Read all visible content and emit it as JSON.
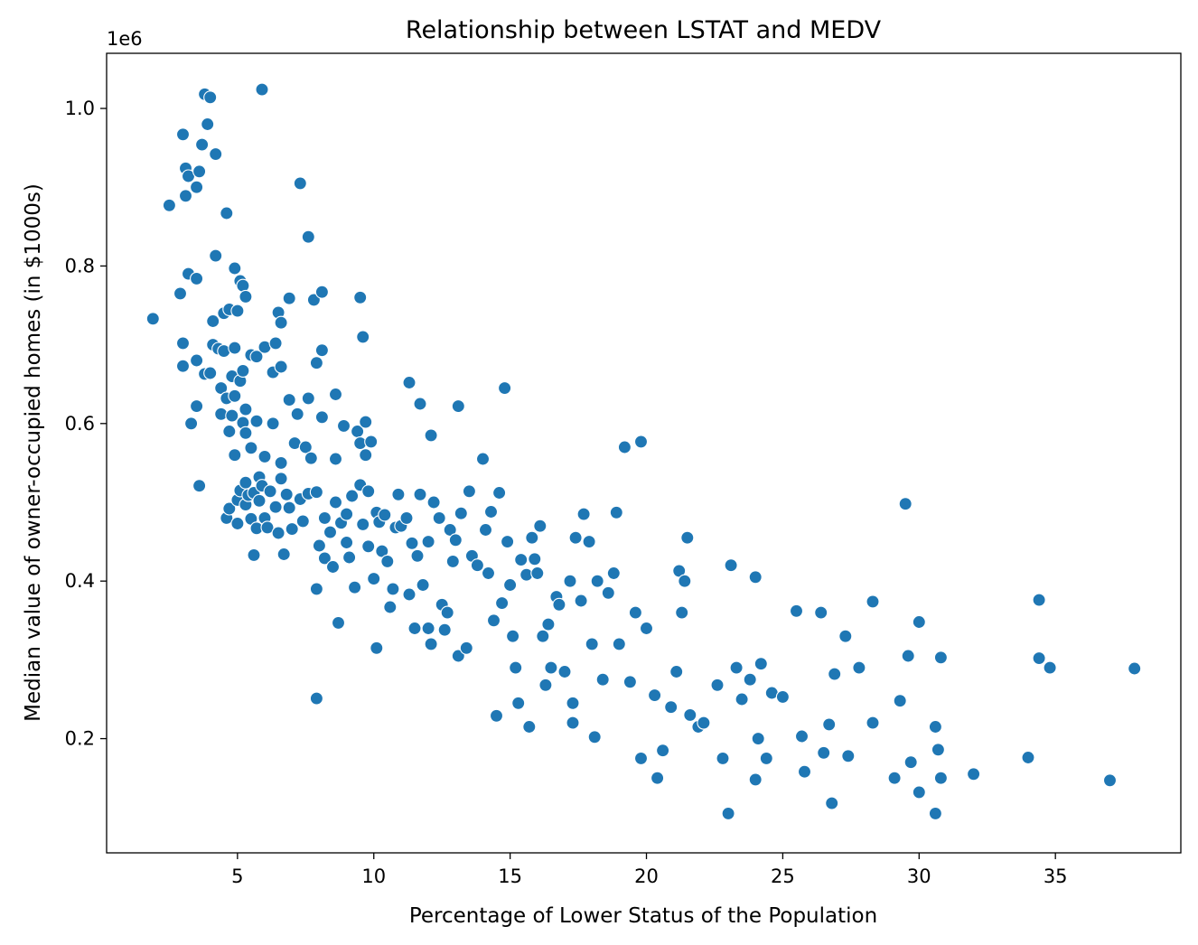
{
  "chart_data": {
    "type": "scatter",
    "title": "Relationship between LSTAT and MEDV",
    "xlabel": "Percentage of Lower Status of the Population",
    "ylabel": "Median value of owner-occupied homes (in $1000s)",
    "y_offset_label": "1e6",
    "xlim": [
      0.2,
      39.6
    ],
    "ylim": [
      0.055,
      1.07
    ],
    "x_ticks": [
      5,
      10,
      15,
      20,
      25,
      30,
      35
    ],
    "x_tick_labels": [
      "5",
      "10",
      "15",
      "20",
      "25",
      "30",
      "35"
    ],
    "y_ticks": [
      0.2,
      0.4,
      0.6,
      0.8,
      1.0
    ],
    "y_tick_labels": [
      "0.2",
      "0.4",
      "0.6",
      "0.8",
      "1.0"
    ],
    "grid": false,
    "legend": "none",
    "color": "#1f77b4",
    "points": [
      [
        1.9,
        0.733
      ],
      [
        2.5,
        0.877
      ],
      [
        2.9,
        0.765
      ],
      [
        3.0,
        0.702
      ],
      [
        3.0,
        0.673
      ],
      [
        3.0,
        0.967
      ],
      [
        3.1,
        0.889
      ],
      [
        3.1,
        0.924
      ],
      [
        3.2,
        0.914
      ],
      [
        3.2,
        0.79
      ],
      [
        3.3,
        0.6
      ],
      [
        3.5,
        0.9
      ],
      [
        3.5,
        0.784
      ],
      [
        3.5,
        0.68
      ],
      [
        3.5,
        0.622
      ],
      [
        3.6,
        0.92
      ],
      [
        3.6,
        0.521
      ],
      [
        3.7,
        0.954
      ],
      [
        3.8,
        1.018
      ],
      [
        3.8,
        0.663
      ],
      [
        3.9,
        0.98
      ],
      [
        4.0,
        1.014
      ],
      [
        4.0,
        0.664
      ],
      [
        4.1,
        0.73
      ],
      [
        4.1,
        0.7
      ],
      [
        4.2,
        0.942
      ],
      [
        4.2,
        0.813
      ],
      [
        4.3,
        0.695
      ],
      [
        4.4,
        0.645
      ],
      [
        4.4,
        0.612
      ],
      [
        4.5,
        0.692
      ],
      [
        4.5,
        0.74
      ],
      [
        4.6,
        0.867
      ],
      [
        4.6,
        0.632
      ],
      [
        4.6,
        0.48
      ],
      [
        4.7,
        0.745
      ],
      [
        4.7,
        0.59
      ],
      [
        4.7,
        0.492
      ],
      [
        4.8,
        0.61
      ],
      [
        4.8,
        0.66
      ],
      [
        4.9,
        0.797
      ],
      [
        4.9,
        0.696
      ],
      [
        4.9,
        0.635
      ],
      [
        4.9,
        0.56
      ],
      [
        5.0,
        0.743
      ],
      [
        5.0,
        0.503
      ],
      [
        5.0,
        0.473
      ],
      [
        5.1,
        0.781
      ],
      [
        5.1,
        0.654
      ],
      [
        5.1,
        0.515
      ],
      [
        5.2,
        0.775
      ],
      [
        5.2,
        0.667
      ],
      [
        5.2,
        0.601
      ],
      [
        5.3,
        0.761
      ],
      [
        5.3,
        0.618
      ],
      [
        5.3,
        0.588
      ],
      [
        5.3,
        0.525
      ],
      [
        5.3,
        0.497
      ],
      [
        5.4,
        0.509
      ],
      [
        5.5,
        0.687
      ],
      [
        5.5,
        0.569
      ],
      [
        5.5,
        0.479
      ],
      [
        5.6,
        0.433
      ],
      [
        5.6,
        0.512
      ],
      [
        5.7,
        0.685
      ],
      [
        5.7,
        0.603
      ],
      [
        5.7,
        0.467
      ],
      [
        5.8,
        0.532
      ],
      [
        5.8,
        0.502
      ],
      [
        5.9,
        1.024
      ],
      [
        5.9,
        0.521
      ],
      [
        6.0,
        0.697
      ],
      [
        6.0,
        0.48
      ],
      [
        6.0,
        0.558
      ],
      [
        6.1,
        0.468
      ],
      [
        6.2,
        0.514
      ],
      [
        6.3,
        0.665
      ],
      [
        6.3,
        0.6
      ],
      [
        6.4,
        0.702
      ],
      [
        6.4,
        0.494
      ],
      [
        6.5,
        0.741
      ],
      [
        6.5,
        0.461
      ],
      [
        6.6,
        0.728
      ],
      [
        6.6,
        0.672
      ],
      [
        6.6,
        0.53
      ],
      [
        6.6,
        0.55
      ],
      [
        6.7,
        0.434
      ],
      [
        6.8,
        0.51
      ],
      [
        6.9,
        0.759
      ],
      [
        6.9,
        0.63
      ],
      [
        6.9,
        0.493
      ],
      [
        7.0,
        0.466
      ],
      [
        7.1,
        0.575
      ],
      [
        7.2,
        0.612
      ],
      [
        7.3,
        0.905
      ],
      [
        7.3,
        0.504
      ],
      [
        7.4,
        0.476
      ],
      [
        7.5,
        0.57
      ],
      [
        7.6,
        0.837
      ],
      [
        7.6,
        0.632
      ],
      [
        7.6,
        0.511
      ],
      [
        7.7,
        0.556
      ],
      [
        7.8,
        0.757
      ],
      [
        7.9,
        0.677
      ],
      [
        7.9,
        0.513
      ],
      [
        7.9,
        0.39
      ],
      [
        7.9,
        0.251
      ],
      [
        8.0,
        0.445
      ],
      [
        8.1,
        0.767
      ],
      [
        8.1,
        0.693
      ],
      [
        8.1,
        0.608
      ],
      [
        8.2,
        0.48
      ],
      [
        8.2,
        0.429
      ],
      [
        8.4,
        0.462
      ],
      [
        8.5,
        0.418
      ],
      [
        8.6,
        0.637
      ],
      [
        8.6,
        0.555
      ],
      [
        8.6,
        0.5
      ],
      [
        8.7,
        0.347
      ],
      [
        8.8,
        0.474
      ],
      [
        8.9,
        0.597
      ],
      [
        9.0,
        0.485
      ],
      [
        9.0,
        0.449
      ],
      [
        9.1,
        0.43
      ],
      [
        9.2,
        0.508
      ],
      [
        9.3,
        0.392
      ],
      [
        9.4,
        0.59
      ],
      [
        9.5,
        0.76
      ],
      [
        9.5,
        0.575
      ],
      [
        9.5,
        0.522
      ],
      [
        9.6,
        0.71
      ],
      [
        9.6,
        0.472
      ],
      [
        9.7,
        0.602
      ],
      [
        9.7,
        0.56
      ],
      [
        9.8,
        0.514
      ],
      [
        9.8,
        0.444
      ],
      [
        9.9,
        0.577
      ],
      [
        10.0,
        0.403
      ],
      [
        10.1,
        0.315
      ],
      [
        10.1,
        0.487
      ],
      [
        10.2,
        0.475
      ],
      [
        10.3,
        0.438
      ],
      [
        10.4,
        0.484
      ],
      [
        10.5,
        0.425
      ],
      [
        10.6,
        0.367
      ],
      [
        10.7,
        0.39
      ],
      [
        10.8,
        0.468
      ],
      [
        10.9,
        0.51
      ],
      [
        11.0,
        0.47
      ],
      [
        11.2,
        0.48
      ],
      [
        11.3,
        0.652
      ],
      [
        11.3,
        0.383
      ],
      [
        11.4,
        0.448
      ],
      [
        11.5,
        0.34
      ],
      [
        11.6,
        0.432
      ],
      [
        11.7,
        0.625
      ],
      [
        11.7,
        0.51
      ],
      [
        11.8,
        0.395
      ],
      [
        12.0,
        0.45
      ],
      [
        12.0,
        0.34
      ],
      [
        12.1,
        0.585
      ],
      [
        12.1,
        0.32
      ],
      [
        12.2,
        0.5
      ],
      [
        12.4,
        0.48
      ],
      [
        12.5,
        0.37
      ],
      [
        12.6,
        0.338
      ],
      [
        12.7,
        0.36
      ],
      [
        12.8,
        0.465
      ],
      [
        12.9,
        0.425
      ],
      [
        13.0,
        0.452
      ],
      [
        13.1,
        0.305
      ],
      [
        13.1,
        0.622
      ],
      [
        13.2,
        0.486
      ],
      [
        13.4,
        0.315
      ],
      [
        13.5,
        0.514
      ],
      [
        13.6,
        0.432
      ],
      [
        13.8,
        0.42
      ],
      [
        14.0,
        0.555
      ],
      [
        14.1,
        0.465
      ],
      [
        14.2,
        0.41
      ],
      [
        14.3,
        0.488
      ],
      [
        14.4,
        0.35
      ],
      [
        14.5,
        0.229
      ],
      [
        14.6,
        0.512
      ],
      [
        14.7,
        0.372
      ],
      [
        14.8,
        0.645
      ],
      [
        14.9,
        0.45
      ],
      [
        15.0,
        0.395
      ],
      [
        15.1,
        0.33
      ],
      [
        15.2,
        0.29
      ],
      [
        15.3,
        0.245
      ],
      [
        15.4,
        0.427
      ],
      [
        15.6,
        0.408
      ],
      [
        15.7,
        0.215
      ],
      [
        15.8,
        0.455
      ],
      [
        15.9,
        0.428
      ],
      [
        16.0,
        0.41
      ],
      [
        16.1,
        0.47
      ],
      [
        16.2,
        0.33
      ],
      [
        16.3,
        0.268
      ],
      [
        16.4,
        0.345
      ],
      [
        16.5,
        0.29
      ],
      [
        16.7,
        0.38
      ],
      [
        16.8,
        0.37
      ],
      [
        17.0,
        0.285
      ],
      [
        17.2,
        0.4
      ],
      [
        17.3,
        0.245
      ],
      [
        17.3,
        0.22
      ],
      [
        17.4,
        0.455
      ],
      [
        17.6,
        0.375
      ],
      [
        17.7,
        0.485
      ],
      [
        17.9,
        0.45
      ],
      [
        18.0,
        0.32
      ],
      [
        18.1,
        0.202
      ],
      [
        18.2,
        0.4
      ],
      [
        18.4,
        0.275
      ],
      [
        18.6,
        0.385
      ],
      [
        18.8,
        0.41
      ],
      [
        18.9,
        0.487
      ],
      [
        19.0,
        0.32
      ],
      [
        19.2,
        0.57
      ],
      [
        19.4,
        0.272
      ],
      [
        19.6,
        0.36
      ],
      [
        19.8,
        0.577
      ],
      [
        19.8,
        0.175
      ],
      [
        20.0,
        0.34
      ],
      [
        20.3,
        0.255
      ],
      [
        20.4,
        0.15
      ],
      [
        20.6,
        0.185
      ],
      [
        20.9,
        0.24
      ],
      [
        21.1,
        0.285
      ],
      [
        21.2,
        0.413
      ],
      [
        21.3,
        0.36
      ],
      [
        21.4,
        0.4
      ],
      [
        21.5,
        0.455
      ],
      [
        21.6,
        0.23
      ],
      [
        21.9,
        0.215
      ],
      [
        22.1,
        0.22
      ],
      [
        22.6,
        0.268
      ],
      [
        22.8,
        0.175
      ],
      [
        23.0,
        0.105
      ],
      [
        23.1,
        0.42
      ],
      [
        23.3,
        0.29
      ],
      [
        23.5,
        0.25
      ],
      [
        23.8,
        0.275
      ],
      [
        24.0,
        0.405
      ],
      [
        24.0,
        0.148
      ],
      [
        24.1,
        0.2
      ],
      [
        24.2,
        0.295
      ],
      [
        24.4,
        0.175
      ],
      [
        24.6,
        0.258
      ],
      [
        25.0,
        0.253
      ],
      [
        25.5,
        0.362
      ],
      [
        25.7,
        0.203
      ],
      [
        25.8,
        0.158
      ],
      [
        26.4,
        0.36
      ],
      [
        26.5,
        0.182
      ],
      [
        26.7,
        0.218
      ],
      [
        26.8,
        0.118
      ],
      [
        26.9,
        0.282
      ],
      [
        27.3,
        0.33
      ],
      [
        27.4,
        0.178
      ],
      [
        27.8,
        0.29
      ],
      [
        28.3,
        0.374
      ],
      [
        28.3,
        0.22
      ],
      [
        29.1,
        0.15
      ],
      [
        29.3,
        0.248
      ],
      [
        29.5,
        0.498
      ],
      [
        29.6,
        0.305
      ],
      [
        29.7,
        0.17
      ],
      [
        30.0,
        0.348
      ],
      [
        30.0,
        0.132
      ],
      [
        30.6,
        0.215
      ],
      [
        30.6,
        0.105
      ],
      [
        30.7,
        0.186
      ],
      [
        30.8,
        0.303
      ],
      [
        30.8,
        0.15
      ],
      [
        32.0,
        0.155
      ],
      [
        34.0,
        0.176
      ],
      [
        34.4,
        0.376
      ],
      [
        34.4,
        0.302
      ],
      [
        34.8,
        0.29
      ],
      [
        37.0,
        0.147
      ],
      [
        37.9,
        0.289
      ]
    ]
  }
}
